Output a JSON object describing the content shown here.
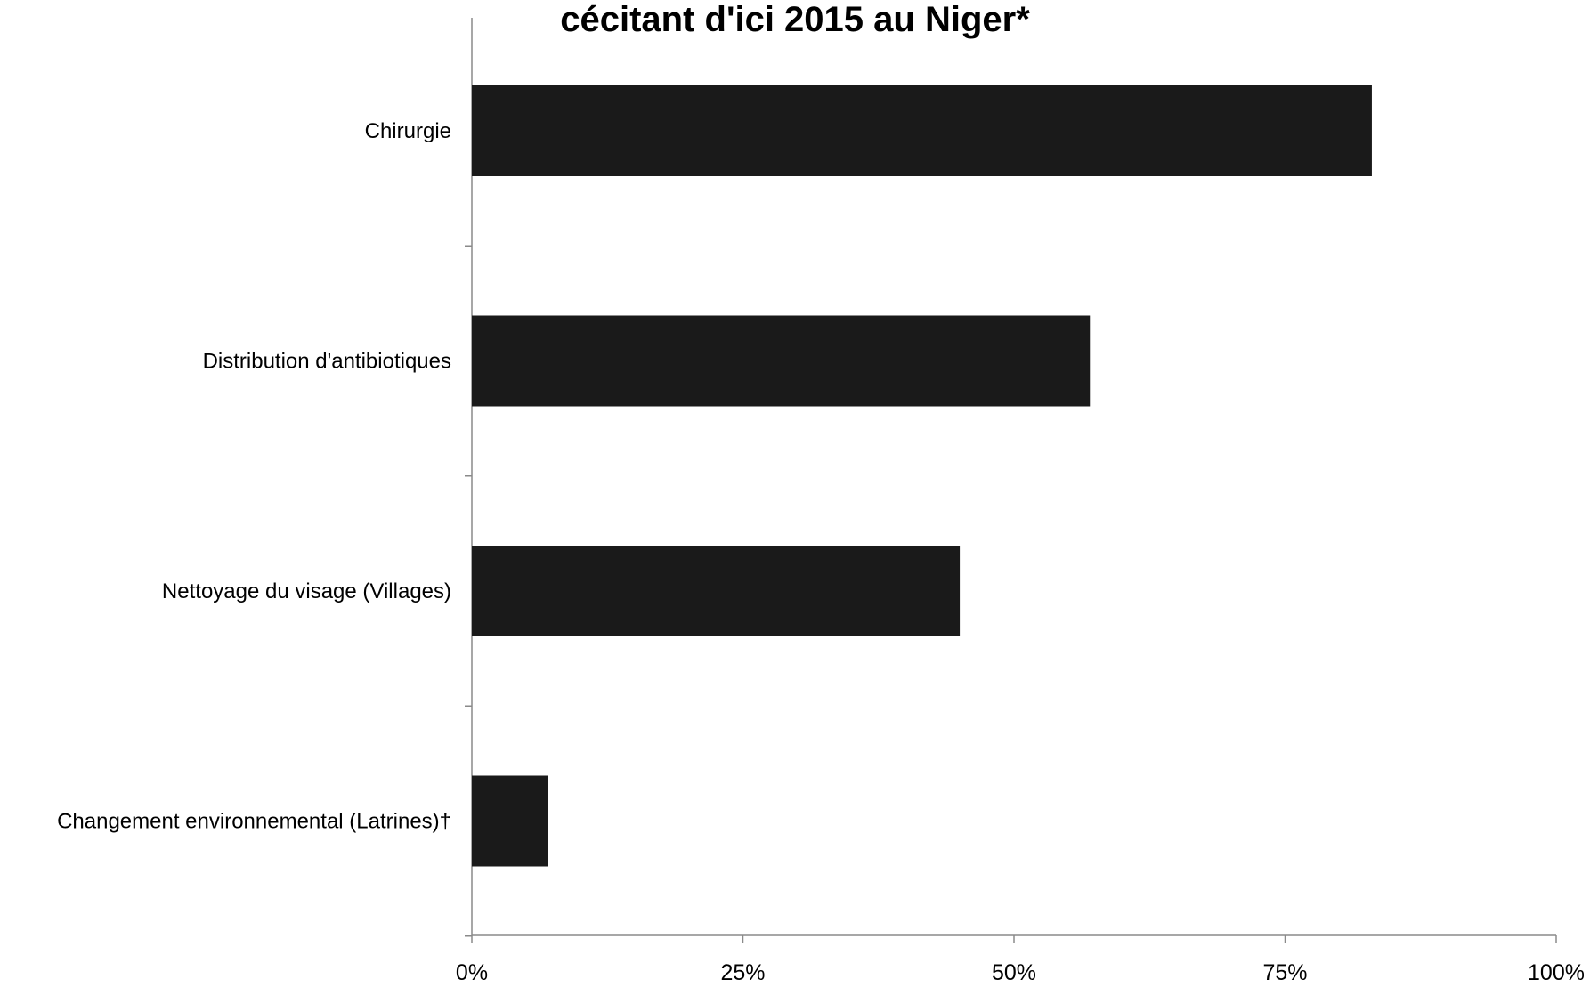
{
  "chart_data": {
    "type": "bar",
    "orientation": "horizontal",
    "title_lines": [
      "",
      "cécitant d'ici 2015 au Niger*"
    ],
    "categories": [
      "Chirurgie",
      "Distribution d'antibiotiques",
      "Nettoyage du visage (Villages)",
      "Changement environnemental (Latrines)†"
    ],
    "values": [
      83,
      57,
      45,
      7
    ],
    "x_ticks": [
      "0%",
      "25%",
      "50%",
      "75%",
      "100%"
    ],
    "xlim": [
      0,
      100
    ],
    "bar_color": "#1a1a1a",
    "xlabel": "",
    "ylabel": "",
    "grid": false,
    "legend": "none"
  }
}
